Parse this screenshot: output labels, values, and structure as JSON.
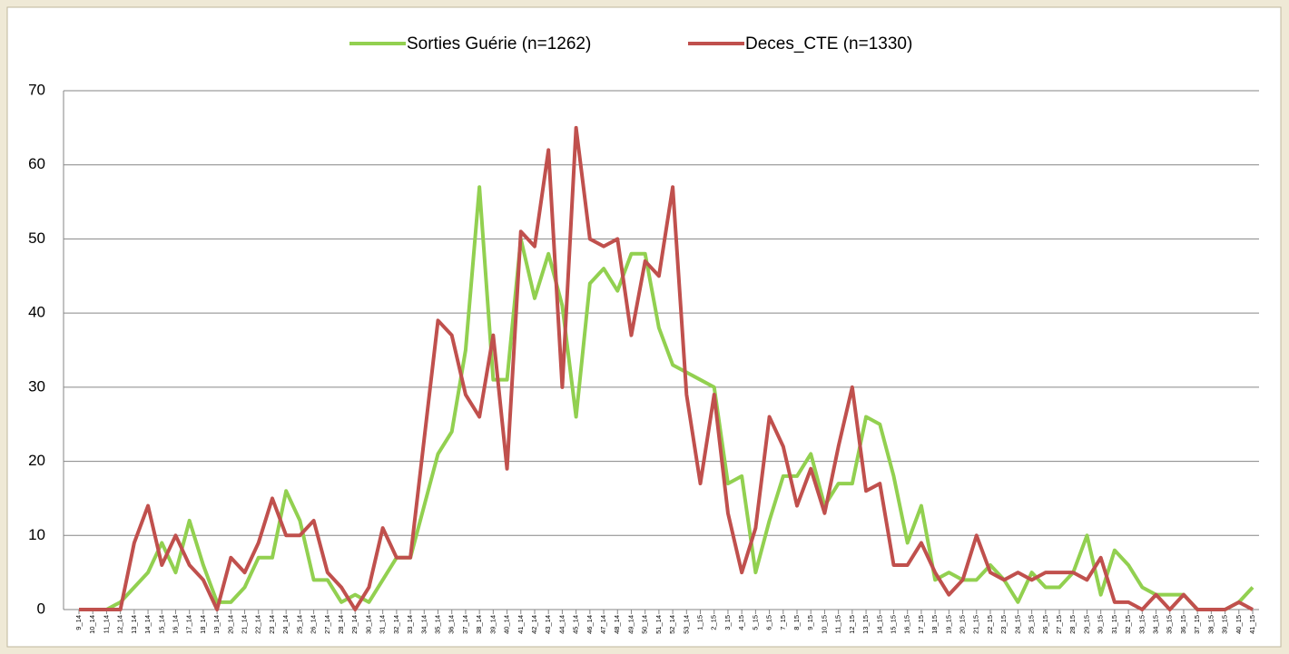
{
  "chart_data": {
    "type": "line",
    "categories": [
      "9_14",
      "10_14",
      "11_14",
      "12_14",
      "13_14",
      "14_14",
      "15_14",
      "16_14",
      "17_14",
      "18_14",
      "19_14",
      "20_14",
      "21_14",
      "22_14",
      "23_14",
      "24_14",
      "25_14",
      "26_14",
      "27_14",
      "28_14",
      "29_14",
      "30_14",
      "31_14",
      "32_14",
      "33_14",
      "34_14",
      "35_14",
      "36_14",
      "37_14",
      "38_14",
      "39_14",
      "40_14",
      "41_14",
      "42_14",
      "43_14",
      "44_14",
      "45_14",
      "46_14",
      "47_14",
      "48_14",
      "49_14",
      "50_14",
      "51_14",
      "52_14",
      "53_14",
      "1_15",
      "2_15",
      "3_15",
      "4_15",
      "5_15",
      "6_15",
      "7_15",
      "8_15",
      "9_15",
      "10_15",
      "11_15",
      "12_15",
      "13_15",
      "14_15",
      "15_15",
      "16_15",
      "17_15",
      "18_15",
      "19_15",
      "20_15",
      "21_15",
      "22_15",
      "23_15",
      "24_15",
      "25_15",
      "26_15",
      "27_15",
      "28_15",
      "29_15",
      "30_15",
      "31_15",
      "32_15",
      "33_15",
      "34_15",
      "35_15",
      "36_15",
      "37_15",
      "38_15",
      "39_15",
      "40_15",
      "41_15"
    ],
    "series": [
      {
        "name": "Sorties Guérie (n=1262)",
        "color": "#92d050",
        "values": [
          0,
          0,
          0,
          1,
          3,
          5,
          9,
          5,
          12,
          6,
          1,
          1,
          3,
          7,
          7,
          16,
          12,
          4,
          4,
          1,
          2,
          1,
          4,
          7,
          7,
          14,
          21,
          24,
          35,
          57,
          31,
          31,
          50,
          42,
          48,
          41,
          26,
          44,
          46,
          43,
          48,
          48,
          38,
          33,
          32,
          31,
          30,
          17,
          18,
          5,
          12,
          18,
          18,
          21,
          14,
          17,
          17,
          26,
          25,
          18,
          9,
          14,
          4,
          5,
          4,
          4,
          6,
          4,
          1,
          5,
          3,
          3,
          5,
          10,
          2,
          8,
          6,
          3,
          2,
          2,
          2,
          0,
          0,
          0,
          1,
          3
        ]
      },
      {
        "name": "Deces_CTE (n=1330)",
        "color": "#c0504d",
        "values": [
          0,
          0,
          0,
          0,
          9,
          14,
          6,
          10,
          6,
          4,
          0,
          7,
          5,
          9,
          15,
          10,
          10,
          12,
          5,
          3,
          0,
          3,
          11,
          7,
          7,
          23,
          39,
          37,
          29,
          26,
          37,
          19,
          51,
          49,
          62,
          30,
          65,
          50,
          49,
          50,
          37,
          47,
          45,
          57,
          29,
          17,
          29,
          13,
          5,
          11,
          26,
          22,
          14,
          19,
          13,
          22,
          30,
          16,
          17,
          6,
          6,
          9,
          5,
          2,
          4,
          10,
          5,
          4,
          5,
          4,
          5,
          5,
          5,
          4,
          7,
          1,
          1,
          0,
          2,
          0,
          2,
          0,
          0,
          0,
          1,
          0
        ]
      }
    ],
    "ylim": [
      0,
      70
    ],
    "yticks": [
      0,
      10,
      20,
      30,
      40,
      50,
      60,
      70
    ],
    "grid": true,
    "legend": "top"
  }
}
